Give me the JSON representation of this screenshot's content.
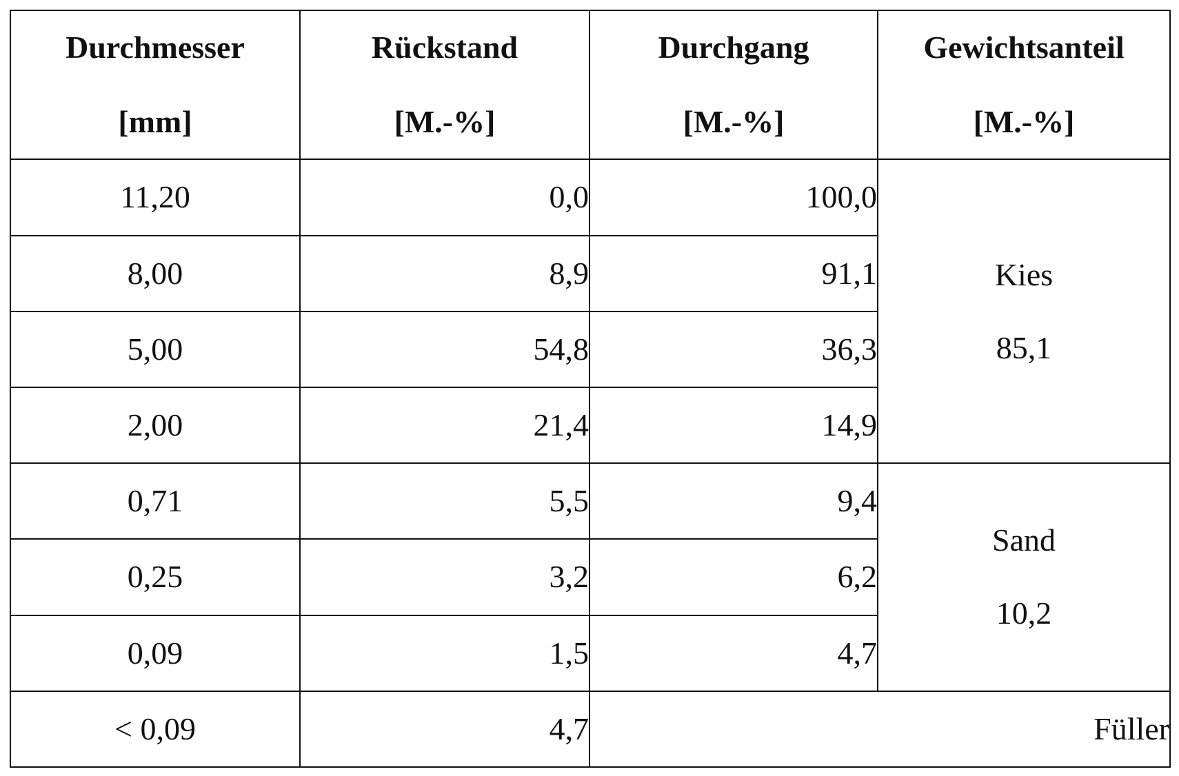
{
  "table": {
    "headers": [
      {
        "title": "Durchmesser",
        "unit": "[mm]"
      },
      {
        "title": "Rückstand",
        "unit": "[M.-%]"
      },
      {
        "title": "Durchgang",
        "unit": "[M.-%]"
      },
      {
        "title": "Gewichtsanteil",
        "unit": "[M.-%]"
      }
    ],
    "rows": [
      {
        "diameter": "11,20",
        "rueckstand": "0,0",
        "durchgang": "100,0"
      },
      {
        "diameter": "8,00",
        "rueckstand": "8,9",
        "durchgang": "91,1"
      },
      {
        "diameter": "5,00",
        "rueckstand": "54,8",
        "durchgang": "36,3"
      },
      {
        "diameter": "2,00",
        "rueckstand": "21,4",
        "durchgang": "14,9"
      },
      {
        "diameter": "0,71",
        "rueckstand": "5,5",
        "durchgang": "9,4"
      },
      {
        "diameter": "0,25",
        "rueckstand": "3,2",
        "durchgang": "6,2"
      },
      {
        "diameter": "0,09",
        "rueckstand": "1,5",
        "durchgang": "4,7"
      },
      {
        "diameter": "< 0,09",
        "rueckstand": "4,7"
      }
    ],
    "groups": {
      "kies": {
        "name": "Kies",
        "value": "85,1"
      },
      "sand": {
        "name": "Sand",
        "value": "10,2"
      },
      "fueller": {
        "name": "Füller"
      }
    }
  }
}
